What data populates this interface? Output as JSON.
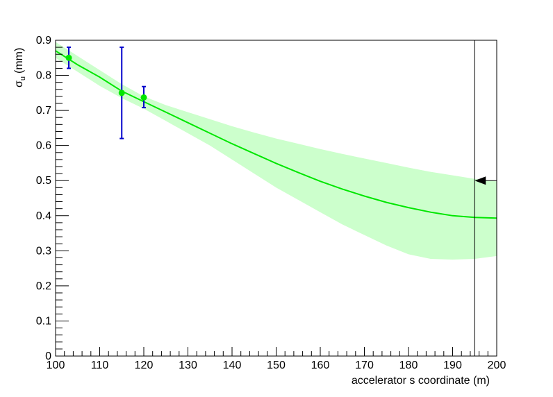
{
  "chart_data": {
    "type": "line",
    "xlabel": "accelerator s coordinate (m)",
    "ylabel": {
      "symbol": "σ",
      "subscript": "u",
      "unit": "(mm)"
    },
    "xlim": [
      100,
      200
    ],
    "ylim": [
      0,
      0.9
    ],
    "x_ticks": [
      100,
      110,
      120,
      130,
      140,
      150,
      160,
      170,
      180,
      190,
      200
    ],
    "y_ticks": [
      0,
      0.1,
      0.2,
      0.3,
      0.4,
      0.5,
      0.6,
      0.7,
      0.8,
      0.9
    ],
    "x_tick_labels": [
      "100",
      "110",
      "120",
      "130",
      "140",
      "150",
      "160",
      "170",
      "180",
      "190",
      "200"
    ],
    "y_tick_labels": [
      "0",
      "0.1",
      "0.2",
      "0.3",
      "0.4",
      "0.5",
      "0.6",
      "0.7",
      "0.8",
      "0.9"
    ],
    "grid": false,
    "colors": {
      "fit": "#00e600",
      "band": "#ccffcc",
      "error_bar": "#0000cc",
      "marker": "#00e600",
      "axis": "#000000"
    },
    "fit": {
      "x": [
        100,
        105,
        110,
        115,
        120,
        125,
        130,
        135,
        140,
        145,
        150,
        155,
        160,
        165,
        170,
        175,
        180,
        185,
        190,
        195,
        200
      ],
      "y": [
        0.87,
        0.83,
        0.795,
        0.755,
        0.725,
        0.695,
        0.665,
        0.635,
        0.605,
        0.577,
        0.549,
        0.523,
        0.498,
        0.476,
        0.456,
        0.438,
        0.423,
        0.41,
        0.4,
        0.395,
        0.393
      ],
      "band_upper": [
        0.895,
        0.855,
        0.815,
        0.775,
        0.74,
        0.715,
        0.695,
        0.675,
        0.655,
        0.637,
        0.62,
        0.605,
        0.59,
        0.576,
        0.563,
        0.55,
        0.537,
        0.525,
        0.515,
        0.505,
        0.498
      ],
      "band_lower": [
        0.85,
        0.81,
        0.77,
        0.735,
        0.705,
        0.67,
        0.635,
        0.6,
        0.56,
        0.52,
        0.48,
        0.445,
        0.41,
        0.375,
        0.345,
        0.315,
        0.29,
        0.277,
        0.275,
        0.277,
        0.285
      ]
    },
    "measurements": [
      {
        "x": 103,
        "y": 0.85,
        "err_low": 0.82,
        "err_high": 0.88
      },
      {
        "x": 115,
        "y": 0.75,
        "err_low": 0.62,
        "err_high": 0.88
      },
      {
        "x": 120,
        "y": 0.737,
        "err_low": 0.708,
        "err_high": 0.768
      }
    ],
    "marker_line": {
      "x": 195
    },
    "arrow": {
      "x_from": 200,
      "x_to": 195,
      "y": 0.5
    }
  }
}
